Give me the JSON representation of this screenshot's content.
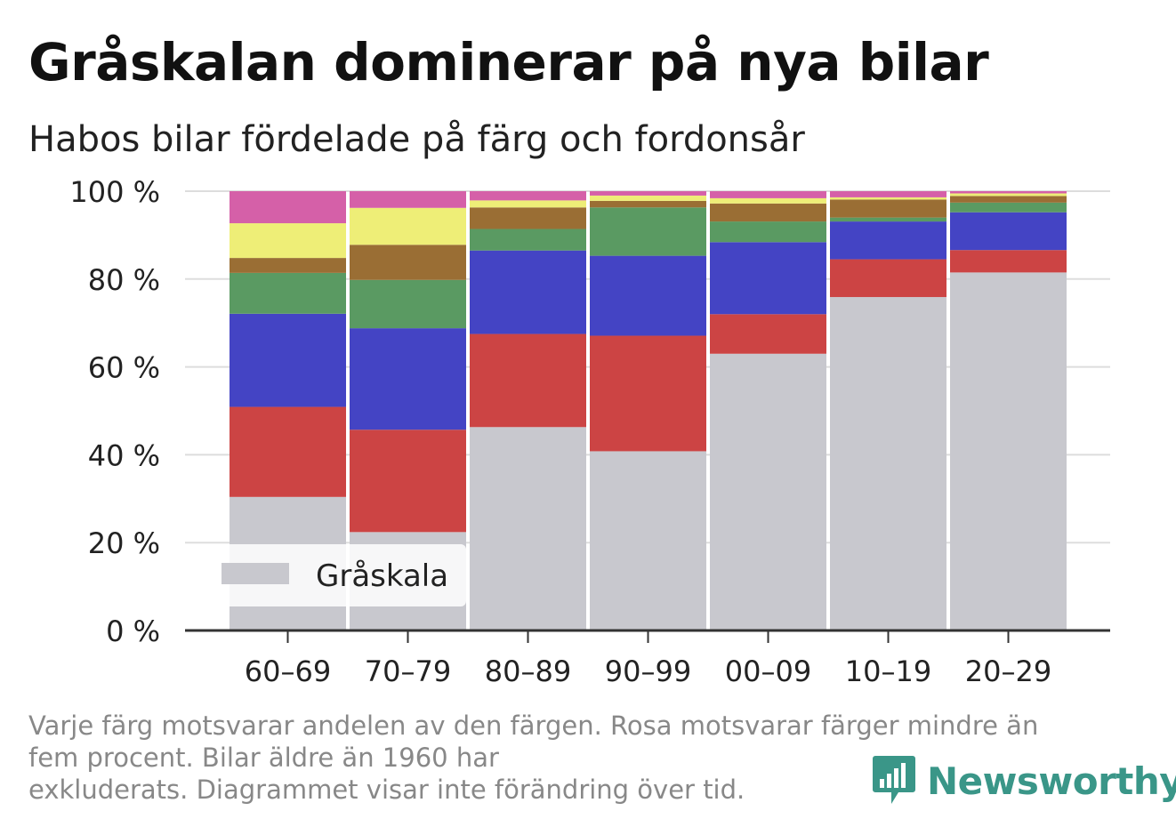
{
  "title": "Gråskalan dominerar på nya bilar",
  "subtitle": "Habos bilar fördelade på färg och fordonsår",
  "footnote": {
    "line1": "Varje färg motsvarar andelen av den färgen. Rosa motsvarar färger mindre än",
    "line2": "fem procent. Bilar äldre än 1960 har",
    "line3": "exkluderats. Diagrammet visar inte förändring över tid."
  },
  "brand": "Newsworthy",
  "brand_color": "#3a9688",
  "legend": {
    "label": "Gråskala"
  },
  "chart_data": {
    "type": "bar",
    "stacked": true,
    "categories": [
      "60–69",
      "70–79",
      "80–89",
      "90–99",
      "00–09",
      "10–19",
      "20–29"
    ],
    "ylim": [
      0,
      100
    ],
    "yticks": [
      0,
      20,
      40,
      60,
      80,
      100
    ],
    "ytick_labels": [
      "0 %",
      "20 %",
      "40 %",
      "60 %",
      "80 %",
      "100 %"
    ],
    "grid": true,
    "legend_position": "bottom-left",
    "series": [
      {
        "name": "Gråskala",
        "color": "#c8c8ce",
        "values": [
          30.4,
          22.4,
          46.3,
          40.8,
          63.0,
          75.9,
          81.5
        ]
      },
      {
        "color": "#cc4444",
        "values": [
          20.5,
          23.3,
          21.2,
          26.3,
          9.0,
          8.6,
          5.1
        ]
      },
      {
        "color": "#4444c4",
        "values": [
          21.2,
          23.1,
          19.0,
          18.2,
          16.4,
          8.6,
          8.6
        ]
      },
      {
        "color": "#5a9a62",
        "values": [
          9.3,
          11.0,
          4.9,
          11.0,
          4.7,
          0.9,
          2.2
        ]
      },
      {
        "color": "#9a6e34",
        "values": [
          3.4,
          8.0,
          4.9,
          1.5,
          4.1,
          4.1,
          1.5
        ]
      },
      {
        "color": "#eeee77",
        "values": [
          7.9,
          8.4,
          1.6,
          1.2,
          1.2,
          0.5,
          0.6
        ]
      },
      {
        "color": "#d560a8",
        "values": [
          7.3,
          3.8,
          2.1,
          1.0,
          1.6,
          1.4,
          0.5
        ]
      }
    ]
  }
}
